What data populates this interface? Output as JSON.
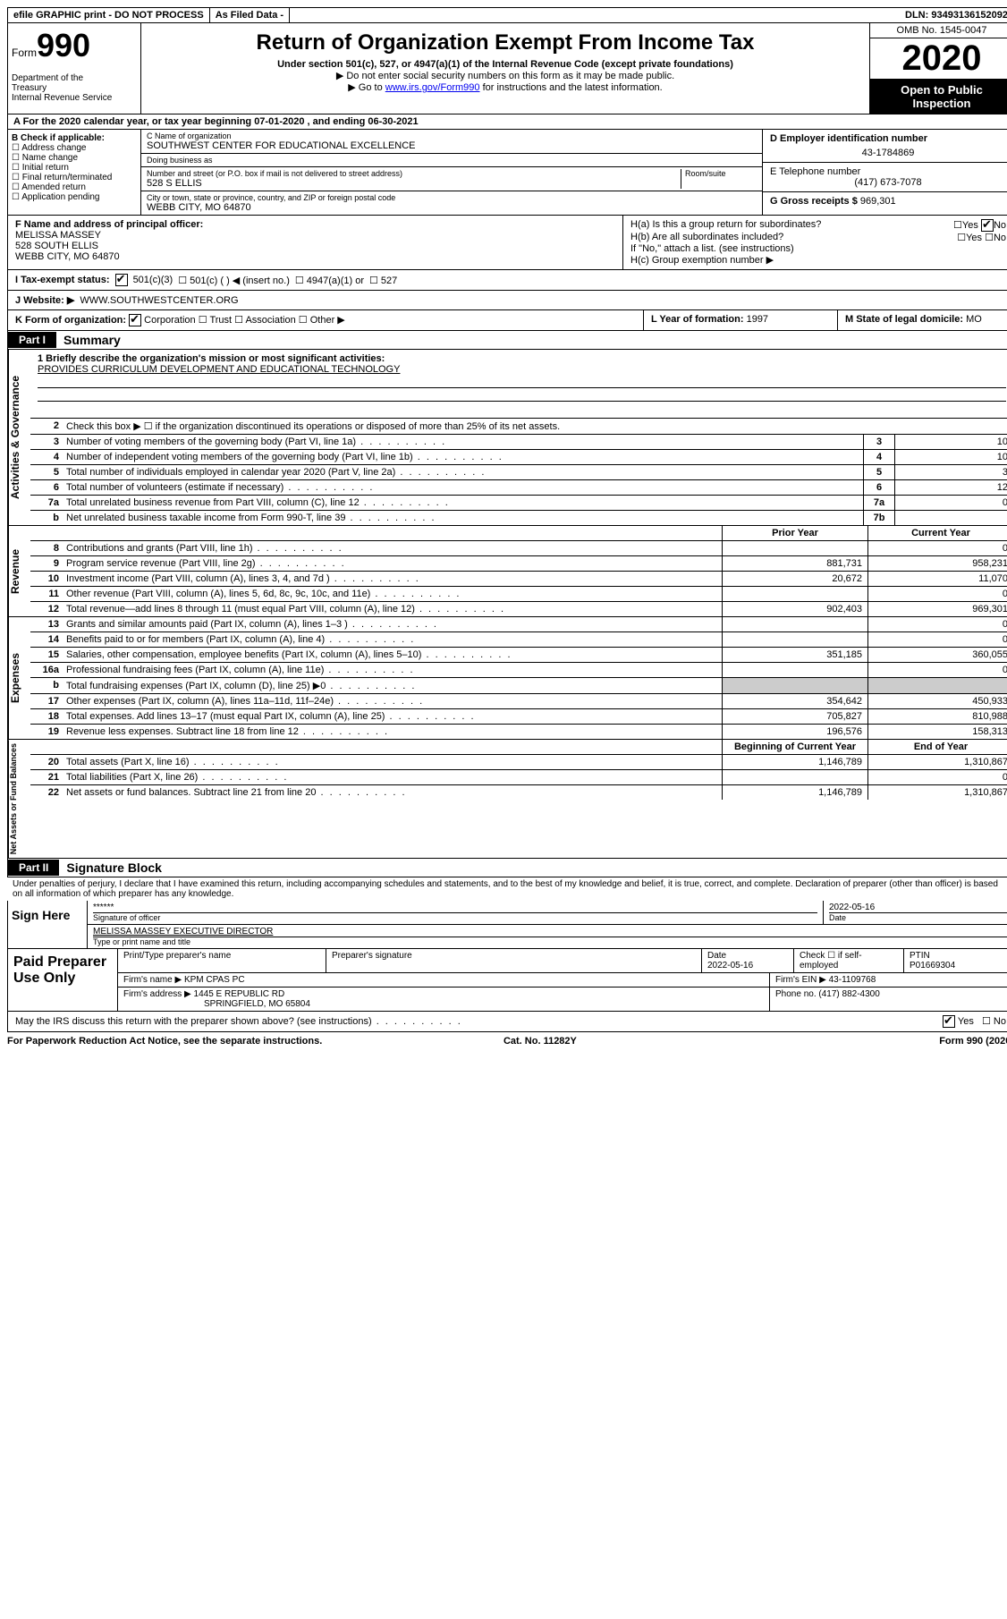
{
  "topbar": {
    "efile": "efile GRAPHIC print - DO NOT PROCESS",
    "asfiled": "As Filed Data -",
    "dln_label": "DLN:",
    "dln": "93493136152092"
  },
  "header": {
    "form_prefix": "Form",
    "form_num": "990",
    "dept": "Department of the Treasury\nInternal Revenue Service",
    "title": "Return of Organization Exempt From Income Tax",
    "sub": "Under section 501(c), 527, or 4947(a)(1) of the Internal Revenue Code (except private foundations)",
    "note1": "▶ Do not enter social security numbers on this form as it may be made public.",
    "note2_pre": "▶ Go to ",
    "note2_link": "www.irs.gov/Form990",
    "note2_post": " for instructions and the latest information.",
    "omb": "OMB No. 1545-0047",
    "year": "2020",
    "inspect": "Open to Public Inspection"
  },
  "rowA": "A  For the 2020 calendar year, or tax year beginning 07-01-2020   , and ending 06-30-2021",
  "B": {
    "title": "B Check if applicable:",
    "items": [
      "Address change",
      "Name change",
      "Initial return",
      "Final return/terminated",
      "Amended return",
      "Application pending"
    ]
  },
  "C": {
    "name_label": "C Name of organization",
    "name": "SOUTHWEST CENTER FOR EDUCATIONAL EXCELLENCE",
    "dba_label": "Doing business as",
    "dba": "",
    "street_label": "Number and street (or P.O. box if mail is not delivered to street address)",
    "street": "528 S ELLIS",
    "room_label": "Room/suite",
    "city_label": "City or town, state or province, country, and ZIP or foreign postal code",
    "city": "WEBB CITY, MO  64870"
  },
  "D": {
    "label": "D Employer identification number",
    "val": "43-1784869"
  },
  "E": {
    "label": "E Telephone number",
    "val": "(417) 673-7078"
  },
  "G": {
    "label": "G Gross receipts $",
    "val": "969,301"
  },
  "F": {
    "label": "F  Name and address of principal officer:",
    "name": "MELISSA MASSEY",
    "addr1": "528 SOUTH ELLIS",
    "addr2": "WEBB CITY, MO  64870"
  },
  "H": {
    "a": "H(a)  Is this a group return for subordinates?",
    "b": "H(b)  Are all subordinates included?",
    "b_note": "If \"No,\" attach a list. (see instructions)",
    "c": "H(c)  Group exemption number ▶",
    "yes": "Yes",
    "no": "No"
  },
  "I": {
    "label": "I  Tax-exempt status:",
    "opts": [
      "501(c)(3)",
      "501(c) (  ) ◀ (insert no.)",
      "4947(a)(1) or",
      "527"
    ]
  },
  "J": {
    "label": "J  Website: ▶",
    "val": "WWW.SOUTHWESTCENTER.ORG"
  },
  "K": {
    "label": "K Form of organization:",
    "opts": [
      "Corporation",
      "Trust",
      "Association",
      "Other ▶"
    ]
  },
  "L": {
    "label": "L Year of formation:",
    "val": "1997"
  },
  "M": {
    "label": "M State of legal domicile:",
    "val": "MO"
  },
  "partI": {
    "tag": "Part I",
    "title": "Summary"
  },
  "summary": {
    "s1_label": "1 Briefly describe the organization's mission or most significant activities:",
    "s1_val": "PROVIDES CURRICULUM DEVELOPMENT AND EDUCATIONAL TECHNOLOGY",
    "s2": "Check this box ▶ ☐ if the organization discontinued its operations or disposed of more than 25% of its net assets.",
    "lines_gov": [
      {
        "n": "3",
        "d": "Number of voting members of the governing body (Part VI, line 1a)",
        "box": "3",
        "v": "10"
      },
      {
        "n": "4",
        "d": "Number of independent voting members of the governing body (Part VI, line 1b)",
        "box": "4",
        "v": "10"
      },
      {
        "n": "5",
        "d": "Total number of individuals employed in calendar year 2020 (Part V, line 2a)",
        "box": "5",
        "v": "3"
      },
      {
        "n": "6",
        "d": "Total number of volunteers (estimate if necessary)",
        "box": "6",
        "v": "12"
      },
      {
        "n": "7a",
        "d": "Total unrelated business revenue from Part VIII, column (C), line 12",
        "box": "7a",
        "v": "0"
      },
      {
        "n": "b",
        "d": "Net unrelated business taxable income from Form 990-T, line 39",
        "box": "7b",
        "v": ""
      }
    ],
    "hdr_prior": "Prior Year",
    "hdr_curr": "Current Year",
    "lines_rev": [
      {
        "n": "8",
        "d": "Contributions and grants (Part VIII, line 1h)",
        "p": "",
        "c": "0"
      },
      {
        "n": "9",
        "d": "Program service revenue (Part VIII, line 2g)",
        "p": "881,731",
        "c": "958,231"
      },
      {
        "n": "10",
        "d": "Investment income (Part VIII, column (A), lines 3, 4, and 7d )",
        "p": "20,672",
        "c": "11,070"
      },
      {
        "n": "11",
        "d": "Other revenue (Part VIII, column (A), lines 5, 6d, 8c, 9c, 10c, and 11e)",
        "p": "",
        "c": "0"
      },
      {
        "n": "12",
        "d": "Total revenue—add lines 8 through 11 (must equal Part VIII, column (A), line 12)",
        "p": "902,403",
        "c": "969,301"
      }
    ],
    "lines_exp": [
      {
        "n": "13",
        "d": "Grants and similar amounts paid (Part IX, column (A), lines 1–3 )",
        "p": "",
        "c": "0"
      },
      {
        "n": "14",
        "d": "Benefits paid to or for members (Part IX, column (A), line 4)",
        "p": "",
        "c": "0"
      },
      {
        "n": "15",
        "d": "Salaries, other compensation, employee benefits (Part IX, column (A), lines 5–10)",
        "p": "351,185",
        "c": "360,055"
      },
      {
        "n": "16a",
        "d": "Professional fundraising fees (Part IX, column (A), line 11e)",
        "p": "",
        "c": "0"
      },
      {
        "n": "b",
        "d": "Total fundraising expenses (Part IX, column (D), line 25) ▶0",
        "p": "—",
        "c": "—"
      },
      {
        "n": "17",
        "d": "Other expenses (Part IX, column (A), lines 11a–11d, 11f–24e)",
        "p": "354,642",
        "c": "450,933"
      },
      {
        "n": "18",
        "d": "Total expenses. Add lines 13–17 (must equal Part IX, column (A), line 25)",
        "p": "705,827",
        "c": "810,988"
      },
      {
        "n": "19",
        "d": "Revenue less expenses. Subtract line 18 from line 12",
        "p": "196,576",
        "c": "158,313"
      }
    ],
    "hdr_beg": "Beginning of Current Year",
    "hdr_end": "End of Year",
    "lines_net": [
      {
        "n": "20",
        "d": "Total assets (Part X, line 16)",
        "p": "1,146,789",
        "c": "1,310,867"
      },
      {
        "n": "21",
        "d": "Total liabilities (Part X, line 26)",
        "p": "",
        "c": "0"
      },
      {
        "n": "22",
        "d": "Net assets or fund balances. Subtract line 21 from line 20",
        "p": "1,146,789",
        "c": "1,310,867"
      }
    ],
    "vtabs": {
      "gov": "Activities & Governance",
      "rev": "Revenue",
      "exp": "Expenses",
      "net": "Net Assets or Fund Balances"
    }
  },
  "partII": {
    "tag": "Part II",
    "title": "Signature Block"
  },
  "sig": {
    "intro": "Under penalties of perjury, I declare that I have examined this return, including accompanying schedules and statements, and to the best of my knowledge and belief, it is true, correct, and complete. Declaration of preparer (other than officer) is based on all information of which preparer has any knowledge.",
    "sign_here": "Sign Here",
    "stars": "******",
    "sig_officer": "Signature of officer",
    "date": "2022-05-16",
    "date_l": "Date",
    "name": "MELISSA MASSEY EXECUTIVE DIRECTOR",
    "name_l": "Type or print name and title"
  },
  "prep": {
    "title": "Paid Preparer Use Only",
    "h1": "Print/Type preparer's name",
    "h2": "Preparer's signature",
    "h3": "Date",
    "h3v": "2022-05-16",
    "h4": "Check ☐ if self-employed",
    "h5": "PTIN",
    "h5v": "P01669304",
    "firm_l": "Firm's name   ▶",
    "firm": "KPM CPAS PC",
    "ein_l": "Firm's EIN ▶",
    "ein": "43-1109768",
    "addr_l": "Firm's address ▶",
    "addr1": "1445 E REPUBLIC RD",
    "addr2": "SPRINGFIELD, MO  65804",
    "phone_l": "Phone no.",
    "phone": "(417) 882-4300"
  },
  "discuss": "May the IRS discuss this return with the preparer shown above? (see instructions)",
  "footer": {
    "l": "For Paperwork Reduction Act Notice, see the separate instructions.",
    "m": "Cat. No. 11282Y",
    "r": "Form 990 (2020)"
  }
}
